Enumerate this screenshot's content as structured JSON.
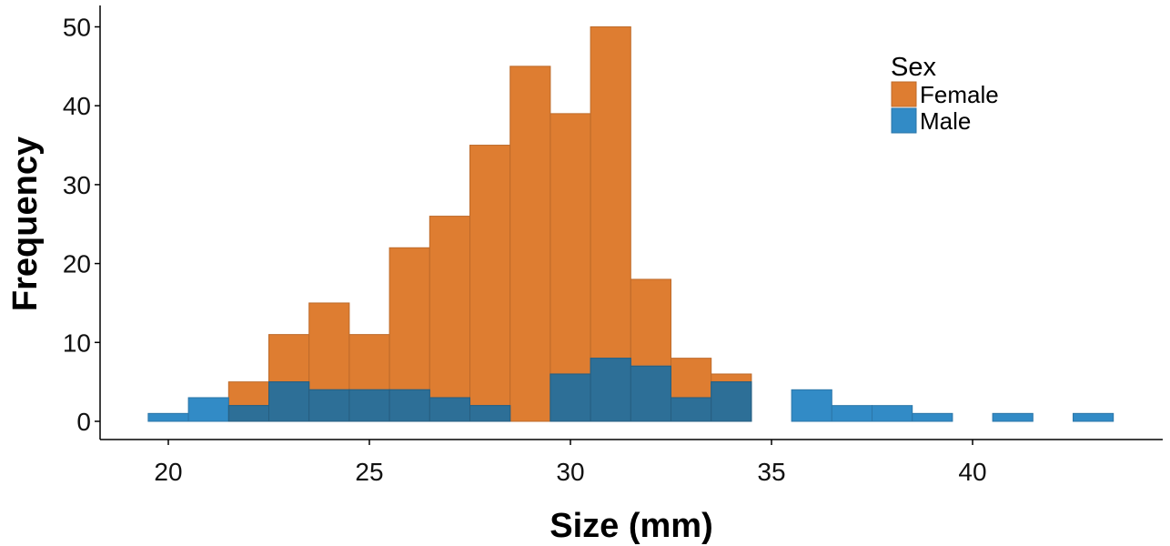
{
  "chart_data": {
    "type": "histogram",
    "xlabel": "Size (mm)",
    "ylabel": "Frequency",
    "xlim": [
      19.5,
      43.5
    ],
    "ylim": [
      0,
      50
    ],
    "x_ticks": [
      20,
      25,
      30,
      35,
      40
    ],
    "y_ticks": [
      0,
      10,
      20,
      30,
      40,
      50
    ],
    "bin_width": 1,
    "bins": [
      20,
      21,
      22,
      23,
      24,
      25,
      26,
      27,
      28,
      29,
      30,
      31,
      32,
      33,
      34,
      35,
      36,
      37,
      38,
      39,
      40,
      41,
      42,
      43
    ],
    "position": "overlay",
    "grid": false,
    "legend": {
      "title": "Sex",
      "placement": "top-right"
    },
    "series": [
      {
        "name": "Female",
        "color": "#de7d31",
        "values": [
          0,
          0,
          5,
          11,
          15,
          11,
          22,
          26,
          35,
          45,
          39,
          50,
          18,
          8,
          6,
          0,
          0,
          0,
          0,
          0,
          0,
          0,
          0,
          0
        ]
      },
      {
        "name": "Male",
        "color": "#328bc6",
        "values": [
          1,
          3,
          2,
          5,
          4,
          4,
          4,
          3,
          2,
          0,
          6,
          8,
          7,
          3,
          5,
          0,
          4,
          2,
          2,
          1,
          0,
          1,
          0,
          1
        ]
      }
    ],
    "overlap_color": "#2d6f97"
  }
}
